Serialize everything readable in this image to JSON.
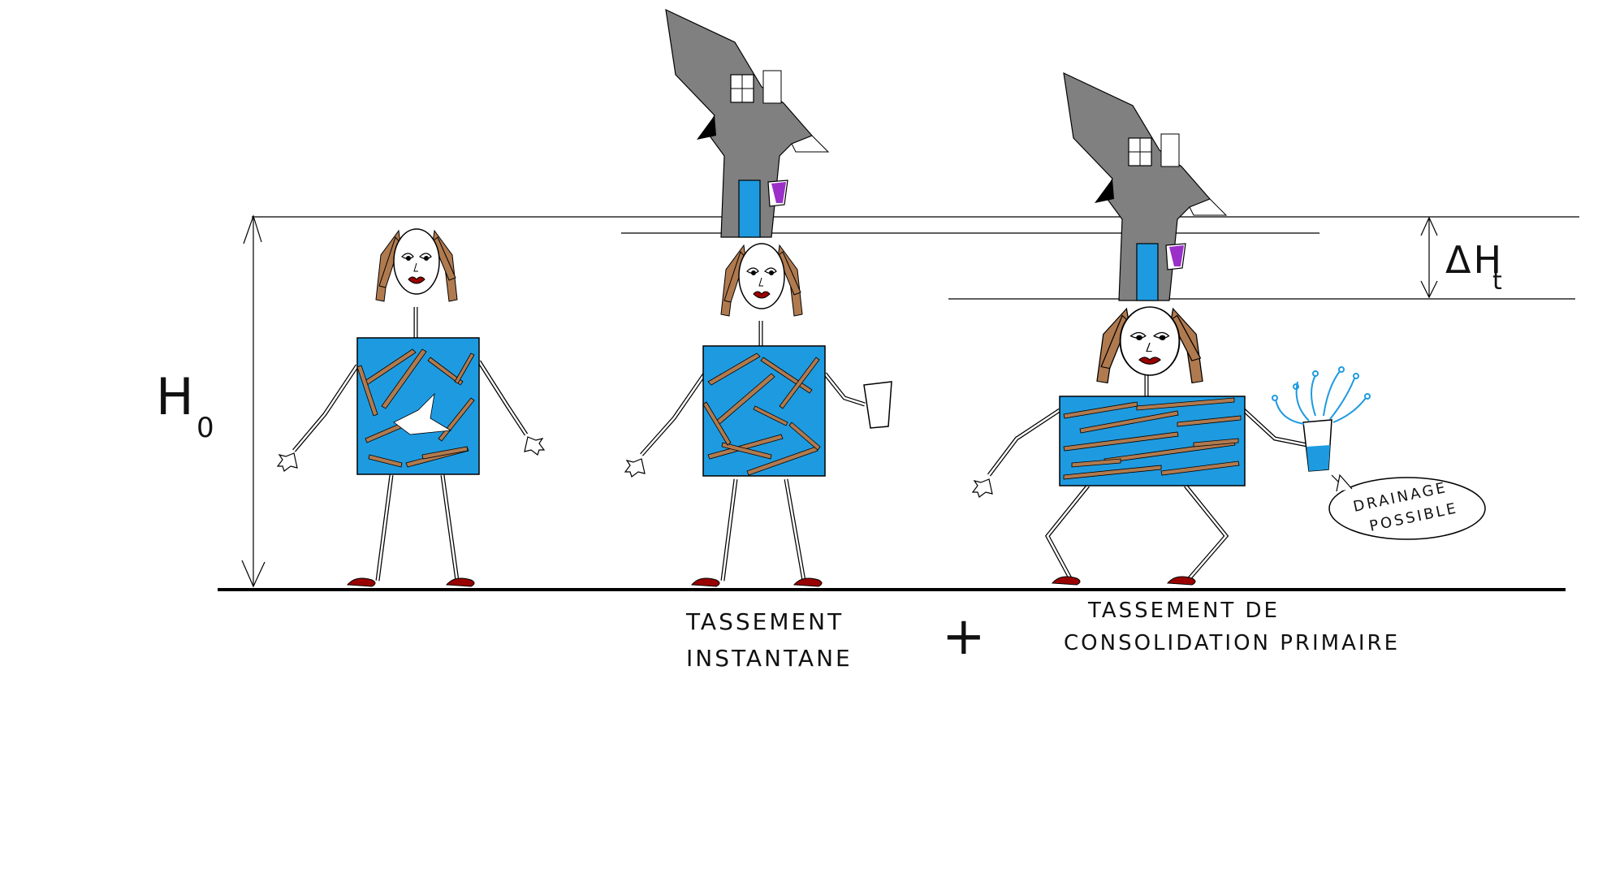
{
  "labels": {
    "h0": "H",
    "h0_sub": "0",
    "delta_h": "ΔH",
    "delta_h_sub": "t",
    "instant_line1": "TASSEMENT",
    "instant_line2": "INSTANTANE",
    "plus": "+",
    "consol_line1": "TASSEMENT DE",
    "consol_line2": "CONSOLIDATION PRIMAIRE",
    "bubble_line1": "DRAINAGE",
    "bubble_line2": "POSSIBLE"
  },
  "colors": {
    "body_blue": "#1e9be0",
    "fiber_brown": "#b07a4f",
    "hair_brown": "#b07a4f",
    "house_grey": "#808080",
    "door_blue": "#1e9be0",
    "shoe_red": "#990000",
    "window_purple": "#9b30c8",
    "line": "#000000"
  }
}
